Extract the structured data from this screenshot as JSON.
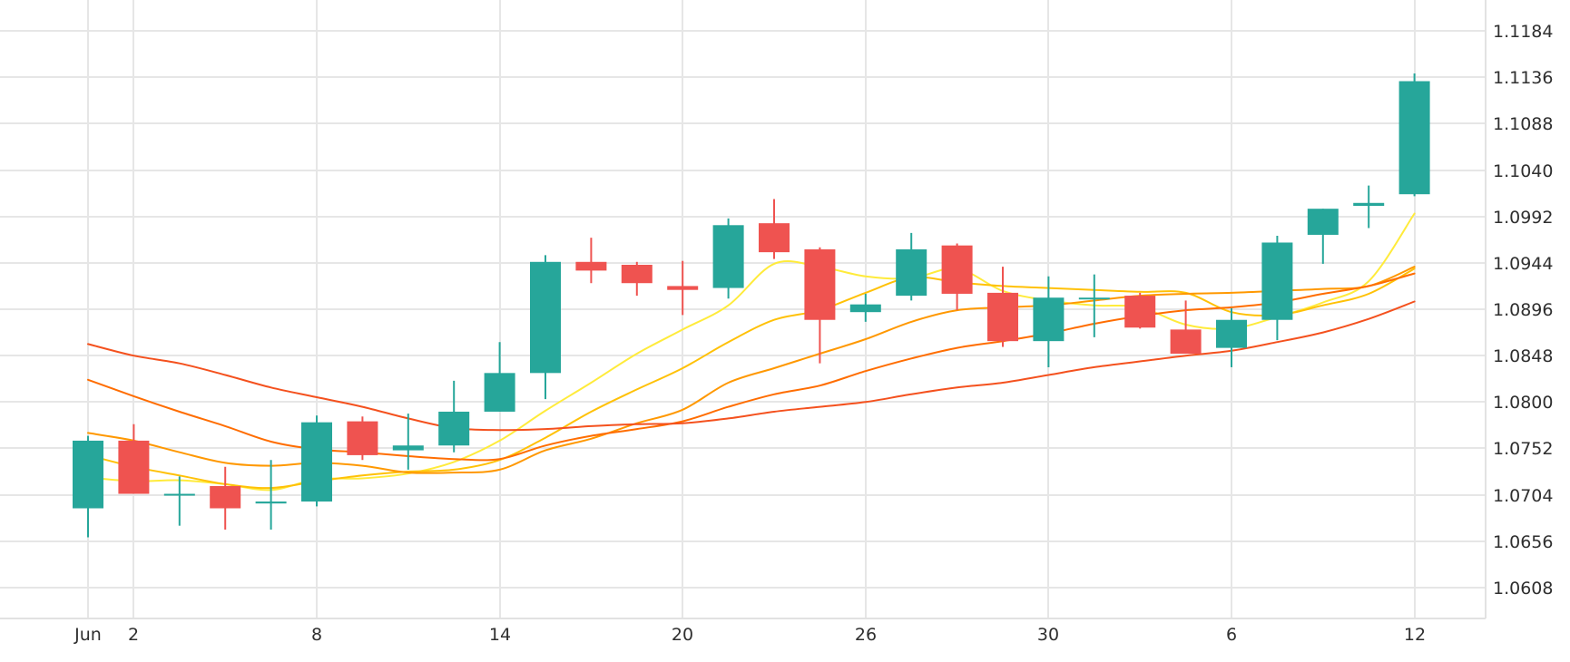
{
  "colors": {
    "up": "#26a69a",
    "down": "#ef5350",
    "grid": "#e6e6e6",
    "text": "#2f2f2f"
  },
  "chart_data": {
    "type": "candlestick",
    "title": "",
    "xlabel": "",
    "ylabel": "",
    "ylim": [
      1.0576,
      1.1216
    ],
    "grid": true,
    "legend": "none",
    "y_ticks": [
      "1.1184",
      "1.1136",
      "1.1088",
      "1.1040",
      "1.0992",
      "1.0944",
      "1.0896",
      "1.0848",
      "1.0800",
      "1.0752",
      "1.0704",
      "1.0656",
      "1.0608"
    ],
    "x_ticks": [
      {
        "index": 0,
        "label": "Jun"
      },
      {
        "index": 1,
        "label": "2"
      },
      {
        "index": 5,
        "label": "8"
      },
      {
        "index": 9,
        "label": "14"
      },
      {
        "index": 13,
        "label": "20"
      },
      {
        "index": 17,
        "label": "26"
      },
      {
        "index": 21,
        "label": "30"
      },
      {
        "index": 25,
        "label": "6"
      },
      {
        "index": 29,
        "label": "12"
      }
    ],
    "candles": [
      {
        "o": 1.069,
        "h": 1.0765,
        "l": 1.066,
        "c": 1.076
      },
      {
        "o": 1.076,
        "h": 1.0777,
        "l": 1.0705,
        "c": 1.0705
      },
      {
        "o": 1.0705,
        "h": 1.0723,
        "l": 1.0672,
        "c": 1.0705
      },
      {
        "o": 1.0713,
        "h": 1.0733,
        "l": 1.0668,
        "c": 1.069
      },
      {
        "o": 1.0695,
        "h": 1.074,
        "l": 1.0668,
        "c": 1.0697
      },
      {
        "o": 1.0697,
        "h": 1.0786,
        "l": 1.0692,
        "c": 1.0779
      },
      {
        "o": 1.078,
        "h": 1.0785,
        "l": 1.074,
        "c": 1.0745
      },
      {
        "o": 1.075,
        "h": 1.0788,
        "l": 1.073,
        "c": 1.0755
      },
      {
        "o": 1.0755,
        "h": 1.0822,
        "l": 1.0748,
        "c": 1.079
      },
      {
        "o": 1.079,
        "h": 1.0862,
        "l": 1.079,
        "c": 1.083
      },
      {
        "o": 1.083,
        "h": 1.0952,
        "l": 1.0803,
        "c": 1.0945
      },
      {
        "o": 1.0945,
        "h": 1.097,
        "l": 1.0923,
        "c": 1.0936
      },
      {
        "o": 1.0942,
        "h": 1.0945,
        "l": 1.091,
        "c": 1.0923
      },
      {
        "o": 1.092,
        "h": 1.0946,
        "l": 1.089,
        "c": 1.0916
      },
      {
        "o": 1.0918,
        "h": 1.099,
        "l": 1.0907,
        "c": 1.0983
      },
      {
        "o": 1.0985,
        "h": 1.101,
        "l": 1.0948,
        "c": 1.0955
      },
      {
        "o": 1.0958,
        "h": 1.096,
        "l": 1.084,
        "c": 1.0885
      },
      {
        "o": 1.0893,
        "h": 1.0912,
        "l": 1.0883,
        "c": 1.0901
      },
      {
        "o": 1.091,
        "h": 1.0975,
        "l": 1.0905,
        "c": 1.0958
      },
      {
        "o": 1.0962,
        "h": 1.0964,
        "l": 1.0895,
        "c": 1.0912
      },
      {
        "o": 1.0913,
        "h": 1.094,
        "l": 1.0857,
        "c": 1.0863
      },
      {
        "o": 1.0863,
        "h": 1.093,
        "l": 1.0836,
        "c": 1.0908
      },
      {
        "o": 1.0908,
        "h": 1.0932,
        "l": 1.0867,
        "c": 1.0908
      },
      {
        "o": 1.091,
        "h": 1.0913,
        "l": 1.0876,
        "c": 1.0877
      },
      {
        "o": 1.0875,
        "h": 1.0905,
        "l": 1.085,
        "c": 1.085
      },
      {
        "o": 1.0856,
        "h": 1.0897,
        "l": 1.0836,
        "c": 1.0885
      },
      {
        "o": 1.0885,
        "h": 1.0972,
        "l": 1.0864,
        "c": 1.0965
      },
      {
        "o": 1.0973,
        "h": 1.1,
        "l": 1.0943,
        "c": 1.1
      },
      {
        "o": 1.1003,
        "h": 1.1024,
        "l": 1.098,
        "c": 1.1006
      },
      {
        "o": 1.1015,
        "h": 1.114,
        "l": 1.1013,
        "c": 1.1132
      }
    ],
    "series": [
      {
        "color": "#ffeb3b",
        "values": [
          1.0722,
          1.0718,
          1.0719,
          1.0715,
          1.0709,
          1.072,
          1.0721,
          1.0726,
          1.0738,
          1.076,
          1.0791,
          1.082,
          1.085,
          1.0875,
          1.09,
          1.0943,
          1.094,
          1.093,
          1.0928,
          1.0938,
          1.0915,
          1.0905,
          1.09,
          1.0898,
          1.088,
          1.0876,
          1.0888,
          1.0903,
          1.0925,
          1.0995
        ]
      },
      {
        "color": "#ffc107",
        "values": [
          1.0745,
          1.0733,
          1.0724,
          1.0715,
          1.0711,
          1.0718,
          1.0724,
          1.0728,
          1.073,
          1.074,
          1.0763,
          1.079,
          1.0813,
          1.0835,
          1.0862,
          1.0885,
          1.0895,
          1.0913,
          1.0929,
          1.0924,
          1.092,
          1.0918,
          1.0916,
          1.0914,
          1.0913,
          1.0893,
          1.089,
          1.09,
          1.0912,
          1.0938
        ]
      },
      {
        "color": "#ff9800",
        "values": [
          1.0768,
          1.076,
          1.0748,
          1.0737,
          1.0734,
          1.0737,
          1.0734,
          1.0727,
          1.0727,
          1.073,
          1.075,
          1.0762,
          1.0778,
          1.0792,
          1.082,
          1.0835,
          1.085,
          1.0865,
          1.0883,
          1.0895,
          1.0898,
          1.09,
          1.0905,
          1.091,
          1.0912,
          1.0913,
          1.0915,
          1.0917,
          1.092,
          1.094
        ]
      },
      {
        "color": "#ff6d00",
        "values": [
          1.0823,
          1.0806,
          1.079,
          1.0775,
          1.0759,
          1.0751,
          1.0748,
          1.0744,
          1.0741,
          1.0741,
          1.0755,
          1.0765,
          1.0772,
          1.078,
          1.0795,
          1.0808,
          1.0817,
          1.0832,
          1.0845,
          1.0856,
          1.0863,
          1.0871,
          1.0881,
          1.0889,
          1.0895,
          1.0898,
          1.0903,
          1.0912,
          1.092,
          1.0933
        ]
      },
      {
        "color": "#f4511e",
        "values": [
          1.086,
          1.0848,
          1.084,
          1.0828,
          1.0815,
          1.0805,
          1.0795,
          1.0783,
          1.0773,
          1.0771,
          1.0772,
          1.0775,
          1.0777,
          1.0778,
          1.0783,
          1.079,
          1.0795,
          1.08,
          1.0808,
          1.0815,
          1.082,
          1.0828,
          1.0836,
          1.0842,
          1.0848,
          1.0853,
          1.0862,
          1.0872,
          1.0886,
          1.0904
        ]
      }
    ]
  }
}
